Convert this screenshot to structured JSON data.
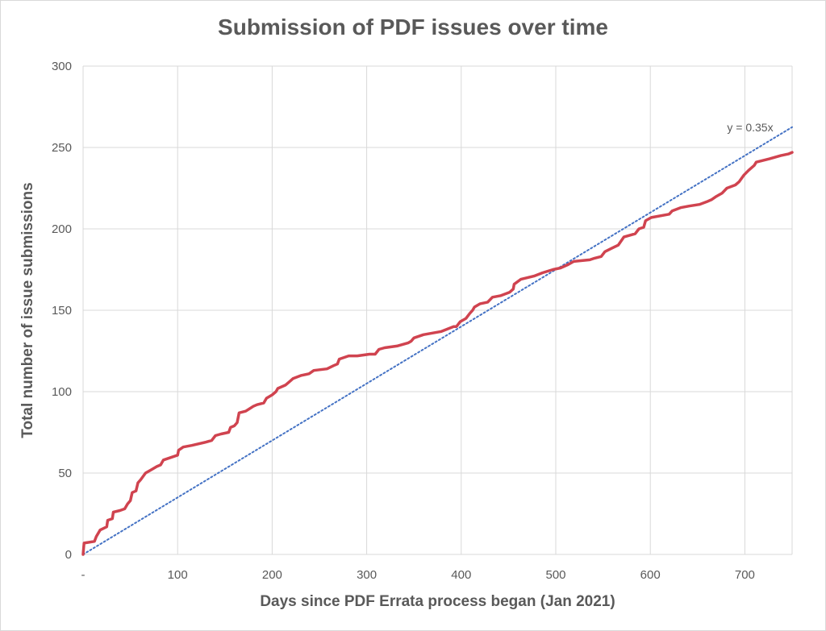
{
  "chart_data": {
    "type": "line",
    "title": "Submission of PDF issues over time",
    "xlabel": "Days since PDF Errata process began (Jan 2021)",
    "ylabel": "Total number of issue submissions",
    "xlim": [
      0,
      750
    ],
    "ylim": [
      0,
      300
    ],
    "x_ticks": [
      0,
      100,
      200,
      300,
      400,
      500,
      600,
      700
    ],
    "x_tick_labels": [
      "-",
      "100",
      "200",
      "300",
      "400",
      "500",
      "600",
      "700"
    ],
    "y_ticks": [
      0,
      50,
      100,
      150,
      200,
      250,
      300
    ],
    "y_tick_labels": [
      "0",
      "50",
      "100",
      "150",
      "200",
      "250",
      "300"
    ],
    "grid": true,
    "series": [
      {
        "color": "#d0434f",
        "points": [
          [
            0,
            0
          ],
          [
            1,
            7
          ],
          [
            12,
            8
          ],
          [
            14,
            11
          ],
          [
            18,
            15
          ],
          [
            25,
            17
          ],
          [
            26,
            21
          ],
          [
            31,
            22
          ],
          [
            32,
            26
          ],
          [
            39,
            27
          ],
          [
            44,
            28
          ],
          [
            47,
            31
          ],
          [
            50,
            33
          ],
          [
            52,
            38
          ],
          [
            56,
            39
          ],
          [
            58,
            44
          ],
          [
            61,
            46
          ],
          [
            66,
            50
          ],
          [
            72,
            52
          ],
          [
            78,
            54
          ],
          [
            82,
            55
          ],
          [
            85,
            58
          ],
          [
            95,
            60
          ],
          [
            100,
            61
          ],
          [
            101,
            64
          ],
          [
            106,
            66
          ],
          [
            115,
            67
          ],
          [
            130,
            69
          ],
          [
            136,
            70
          ],
          [
            140,
            73
          ],
          [
            146,
            74
          ],
          [
            154,
            75
          ],
          [
            156,
            78
          ],
          [
            160,
            79
          ],
          [
            163,
            81
          ],
          [
            165,
            87
          ],
          [
            172,
            88
          ],
          [
            180,
            91
          ],
          [
            184,
            92
          ],
          [
            191,
            93
          ],
          [
            194,
            96
          ],
          [
            200,
            98
          ],
          [
            204,
            100
          ],
          [
            206,
            102
          ],
          [
            214,
            104
          ],
          [
            218,
            106
          ],
          [
            222,
            108
          ],
          [
            231,
            110
          ],
          [
            239,
            111
          ],
          [
            244,
            113
          ],
          [
            258,
            114
          ],
          [
            265,
            116
          ],
          [
            269,
            117
          ],
          [
            271,
            120
          ],
          [
            281,
            122
          ],
          [
            290,
            122
          ],
          [
            303,
            123
          ],
          [
            309,
            123
          ],
          [
            313,
            126
          ],
          [
            319,
            127
          ],
          [
            332,
            128
          ],
          [
            344,
            130
          ],
          [
            347,
            131
          ],
          [
            350,
            133
          ],
          [
            360,
            135
          ],
          [
            379,
            137
          ],
          [
            392,
            140
          ],
          [
            395,
            140
          ],
          [
            399,
            143
          ],
          [
            405,
            145
          ],
          [
            409,
            148
          ],
          [
            412,
            150
          ],
          [
            414,
            152
          ],
          [
            420,
            154
          ],
          [
            428,
            155
          ],
          [
            433,
            158
          ],
          [
            442,
            159
          ],
          [
            451,
            161
          ],
          [
            455,
            163
          ],
          [
            456,
            166
          ],
          [
            463,
            169
          ],
          [
            477,
            171
          ],
          [
            486,
            173
          ],
          [
            497,
            175
          ],
          [
            505,
            176
          ],
          [
            513,
            178
          ],
          [
            519,
            180
          ],
          [
            536,
            181
          ],
          [
            541,
            182
          ],
          [
            548,
            183
          ],
          [
            552,
            186
          ],
          [
            559,
            188
          ],
          [
            566,
            190
          ],
          [
            572,
            195
          ],
          [
            584,
            197
          ],
          [
            588,
            200
          ],
          [
            593,
            201
          ],
          [
            595,
            205
          ],
          [
            601,
            207
          ],
          [
            620,
            209
          ],
          [
            623,
            211
          ],
          [
            632,
            213
          ],
          [
            641,
            214
          ],
          [
            652,
            215
          ],
          [
            661,
            217
          ],
          [
            665,
            218
          ],
          [
            670,
            220
          ],
          [
            676,
            222
          ],
          [
            681,
            225
          ],
          [
            690,
            227
          ],
          [
            694,
            229
          ],
          [
            699,
            233
          ],
          [
            704,
            236
          ],
          [
            710,
            239
          ],
          [
            712,
            241
          ],
          [
            726,
            243
          ],
          [
            738,
            245
          ],
          [
            746,
            246
          ],
          [
            750,
            247
          ]
        ]
      }
    ],
    "trendline": {
      "equation": "y = 0.35x",
      "slope": 0.35,
      "x_range": [
        0,
        750
      ],
      "color": "#4472c4",
      "style": "dotted"
    }
  }
}
